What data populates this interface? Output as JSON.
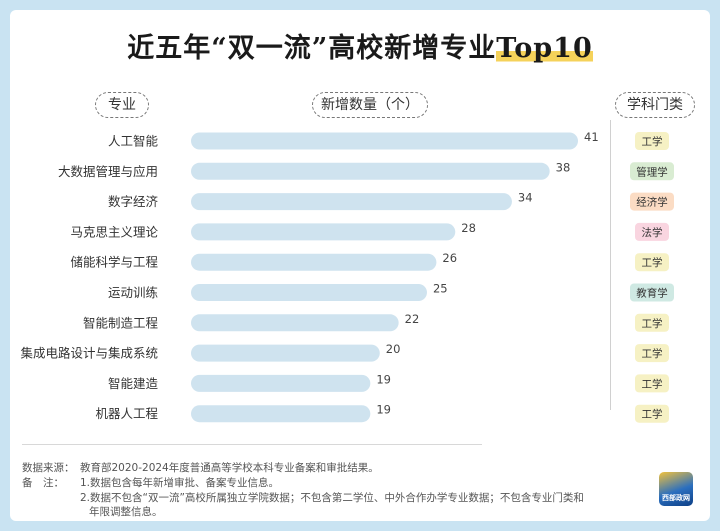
{
  "title": "近五年“双一流”高校新增专业",
  "title_highlight": "Top10",
  "headers": {
    "major": "专业",
    "count": "新增数量（个）",
    "category": "学科门类"
  },
  "chart_data": {
    "type": "bar",
    "orientation": "horizontal",
    "categories": [
      "人工智能",
      "大数据管理与应用",
      "数字经济",
      "马克思主义理论",
      "储能科学与工程",
      "运动训练",
      "智能制造工程",
      "集成电路设计与集成系统",
      "智能建造",
      "机器人工程"
    ],
    "values": [
      41,
      38,
      34,
      28,
      26,
      25,
      22,
      20,
      19,
      19
    ],
    "discipline": [
      "工学",
      "管理学",
      "经济学",
      "法学",
      "工学",
      "教育学",
      "工学",
      "工学",
      "工学",
      "工学"
    ],
    "xlim": [
      0,
      41
    ],
    "bar_color": "#cfe3ef"
  },
  "badge_colors": {
    "工学": "#f6f1c4",
    "管理学": "#d9ecd2",
    "经济学": "#fbdcc4",
    "法学": "#f9d5e0",
    "教育学": "#cfe9e3"
  },
  "footer": {
    "source_label": "数据来源：",
    "source_text": "教育部2020-2024年度普通高等学校本科专业备案和审批结果。",
    "note_label": "备　注：",
    "note1": "1.数据包含每年新增审批、备案专业信息。",
    "note2": "2.数据不包含“双一流”高校所属独立学院数据；不包含第二学位、中外合作办学专业数据；不包含专业门类和",
    "note2_cont": "年限调整信息。"
  },
  "logo_text": "西部政网"
}
